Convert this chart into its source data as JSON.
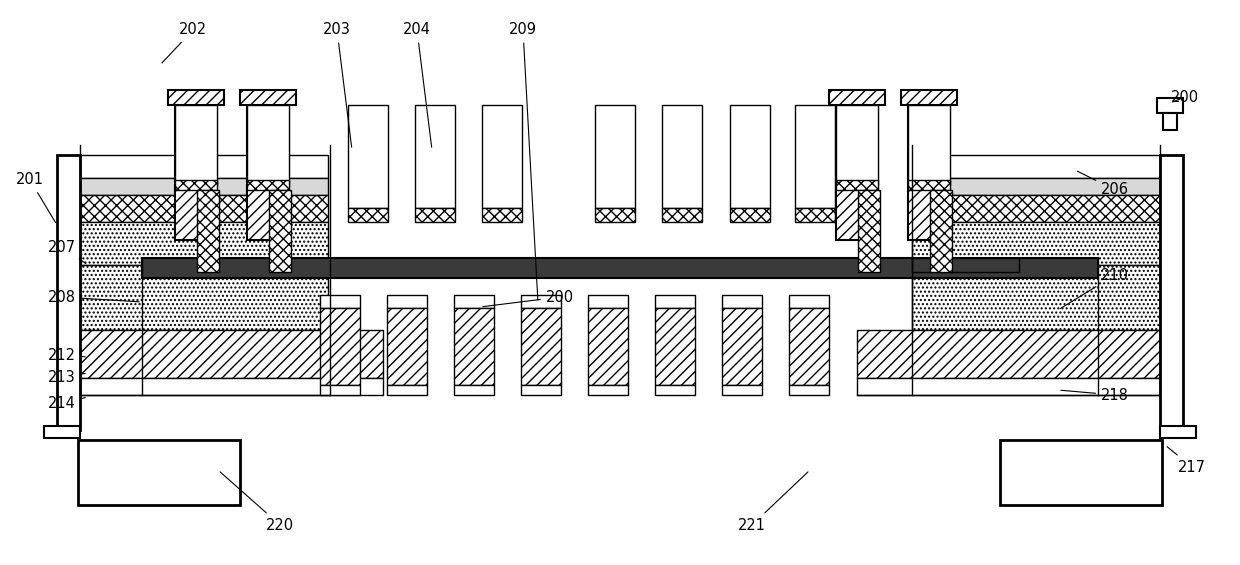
{
  "fig_width": 12.4,
  "fig_height": 5.65,
  "bg_color": "#ffffff",
  "lw_thin": 1.0,
  "lw_med": 1.5,
  "lw_thick": 2.0,
  "annotations": [
    [
      "220",
      280,
      40,
      218,
      95
    ],
    [
      "221",
      752,
      40,
      810,
      95
    ],
    [
      "200",
      560,
      268,
      480,
      258
    ],
    [
      "200",
      1185,
      468,
      1170,
      462
    ],
    [
      "201",
      30,
      385,
      57,
      340
    ],
    [
      "202",
      193,
      535,
      160,
      500
    ],
    [
      "203",
      337,
      535,
      352,
      415
    ],
    [
      "204",
      417,
      535,
      432,
      415
    ],
    [
      "206",
      1115,
      375,
      1075,
      395
    ],
    [
      "207",
      62,
      318,
      88,
      300
    ],
    [
      "208",
      62,
      268,
      142,
      263
    ],
    [
      "209",
      523,
      535,
      538,
      262
    ],
    [
      "210",
      1115,
      290,
      1058,
      255
    ],
    [
      "212",
      62,
      210,
      88,
      208
    ],
    [
      "213",
      62,
      188,
      88,
      192
    ],
    [
      "214",
      62,
      162,
      88,
      168
    ],
    [
      "217",
      1192,
      98,
      1165,
      120
    ],
    [
      "218",
      1115,
      170,
      1058,
      175
    ]
  ]
}
